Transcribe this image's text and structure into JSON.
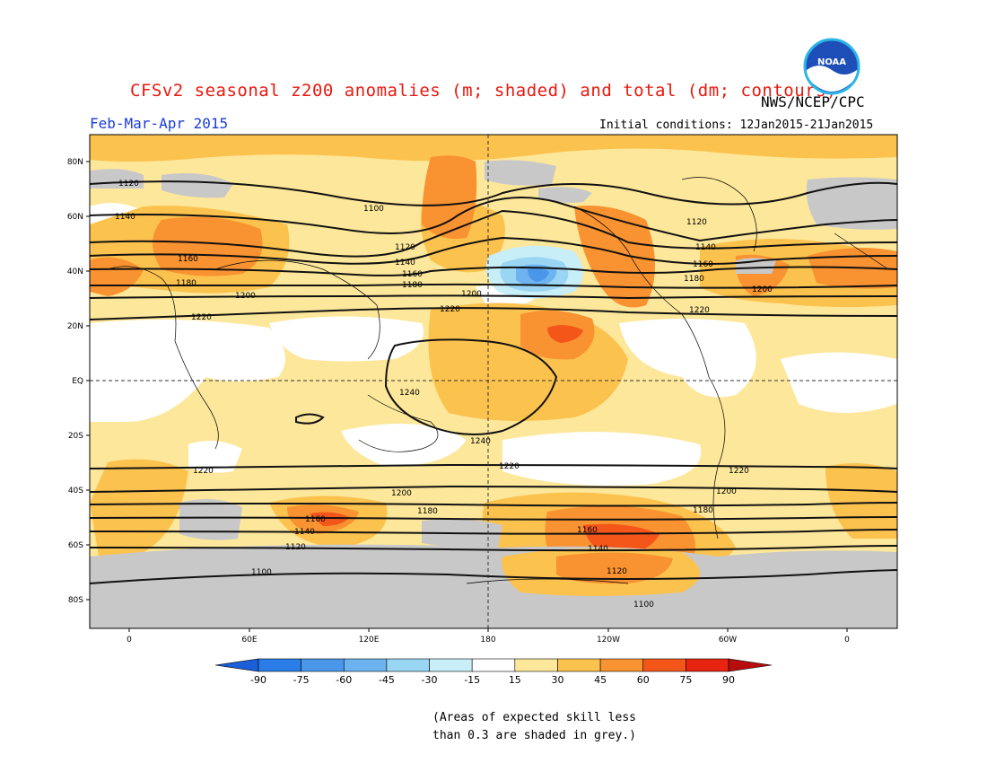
{
  "header": {
    "title": "CFSv2 seasonal z200 anomalies (m; shaded) and total (dm; contours)",
    "agency": "NWS/NCEP/CPC",
    "season": "Feb-Mar-Apr 2015",
    "initial_conditions": "Initial conditions: 12Jan2015-21Jan2015",
    "logo_text": "NOAA"
  },
  "map": {
    "lat_ticks": [
      "80N",
      "60N",
      "40N",
      "20N",
      "EQ",
      "20S",
      "40S",
      "60S",
      "80S"
    ],
    "lon_ticks": [
      "0",
      "60E",
      "120E",
      "180",
      "120W",
      "60W",
      "0"
    ],
    "contour_labels": [
      "1100",
      "1120",
      "1140",
      "1160",
      "1180",
      "1200",
      "1220",
      "1240"
    ]
  },
  "colorbar": {
    "labels": [
      "-90",
      "-75",
      "-60",
      "-45",
      "-30",
      "-15",
      "15",
      "30",
      "45",
      "60",
      "75",
      "90"
    ],
    "colors": [
      "#1a5fd8",
      "#2a7de6",
      "#4a97ea",
      "#6db3f0",
      "#9ad6f4",
      "#c8eef8",
      "#ffffff",
      "#fde79a",
      "#fcc24e",
      "#f99230",
      "#f4561a",
      "#e8230f",
      "#b80d0d"
    ]
  },
  "footnote": {
    "line1": "(Areas of expected skill less",
    "line2": "than 0.3 are shaded in grey.)"
  },
  "colors": {
    "title": "#e8190f",
    "season": "#1a3cd8",
    "skill_grey": "#c8c8c8"
  }
}
